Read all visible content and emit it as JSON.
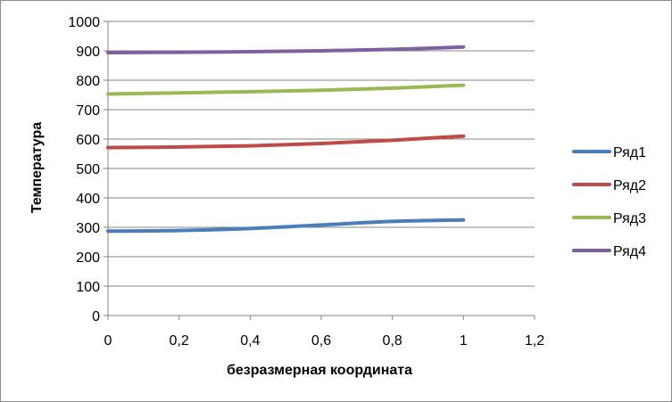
{
  "chart_data": {
    "type": "line",
    "title": "",
    "xlabel": "безразмерная координата",
    "ylabel": "Температура",
    "xlim": [
      0,
      1.2
    ],
    "ylim": [
      0,
      1000
    ],
    "xticks": [
      0,
      0.2,
      0.4,
      0.6,
      0.8,
      1,
      1.2
    ],
    "xtick_labels": [
      "0",
      "0,2",
      "0,4",
      "0,6",
      "0,8",
      "1",
      "1,2"
    ],
    "yticks": [
      0,
      100,
      200,
      300,
      400,
      500,
      600,
      700,
      800,
      900,
      1000
    ],
    "ytick_labels": [
      "0",
      "100",
      "200",
      "300",
      "400",
      "500",
      "600",
      "700",
      "800",
      "900",
      "1000"
    ],
    "grid": "horizontal",
    "legend_position": "right",
    "x": [
      0,
      0.2,
      0.4,
      0.6,
      0.8,
      1
    ],
    "series": [
      {
        "name": "Ряд1",
        "color": "#4a7ebb",
        "values": [
          287,
          289,
          296,
          308,
          320,
          325
        ]
      },
      {
        "name": "Ряд2",
        "color": "#be4b48",
        "values": [
          571,
          573,
          577,
          585,
          596,
          610
        ]
      },
      {
        "name": "Ряд3",
        "color": "#98b954",
        "values": [
          753,
          757,
          761,
          766,
          773,
          783
        ]
      },
      {
        "name": "Ряд4",
        "color": "#7d60a0",
        "values": [
          894,
          895,
          897,
          900,
          905,
          913
        ]
      }
    ]
  }
}
